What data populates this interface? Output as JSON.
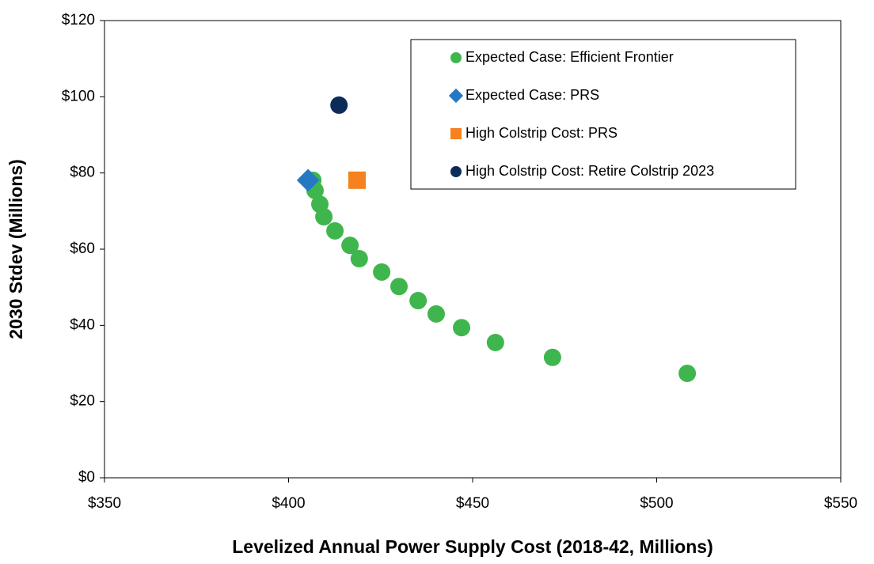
{
  "chart_data": {
    "type": "scatter",
    "x_label": "Levelized Annual Power Supply Cost (2018-42, Millions)",
    "y_label": "2030 Stdev (Millions)",
    "xlim": [
      350,
      550
    ],
    "ylim": [
      0,
      120
    ],
    "xticks": [
      {
        "value": 350,
        "label": "$350"
      },
      {
        "value": 400,
        "label": "$400"
      },
      {
        "value": 450,
        "label": "$450"
      },
      {
        "value": 500,
        "label": "$500"
      },
      {
        "value": 550,
        "label": "$550"
      }
    ],
    "yticks": [
      {
        "value": 0,
        "label": "$0"
      },
      {
        "value": 20,
        "label": "$20"
      },
      {
        "value": 40,
        "label": "$40"
      },
      {
        "value": 60,
        "label": "$60"
      },
      {
        "value": 80,
        "label": "$80"
      },
      {
        "value": 100,
        "label": "$100"
      },
      {
        "value": 120,
        "label": "$120"
      }
    ],
    "grid": false,
    "legend": "upper right",
    "series": [
      {
        "name": "Expected Case: Efficient Frontier",
        "color": "#3fb64d",
        "marker": "circle",
        "x": [
          406.6,
          407.2,
          408.5,
          409.6,
          412.6,
          416.7,
          419.2,
          425.3,
          430.0,
          435.2,
          440.1,
          447.0,
          456.2,
          471.7,
          508.3
        ],
        "values": [
          78.1,
          75.4,
          71.8,
          68.5,
          64.8,
          61.0,
          57.5,
          54.0,
          50.2,
          46.5,
          43.0,
          39.4,
          35.5,
          31.6,
          27.4
        ]
      },
      {
        "name": "Expected Case: PRS",
        "color": "#2479c2",
        "marker": "diamond",
        "x": [
          405.3
        ],
        "values": [
          78.1
        ]
      },
      {
        "name": "High Colstrip Cost: PRS",
        "color": "#f5821f",
        "marker": "square",
        "x": [
          418.6
        ],
        "values": [
          78.1
        ]
      },
      {
        "name": "High Colstrip Cost: Retire Colstrip 2023",
        "color": "#0d2b59",
        "marker": "circle",
        "x": [
          413.7
        ],
        "values": [
          97.8
        ]
      }
    ]
  }
}
